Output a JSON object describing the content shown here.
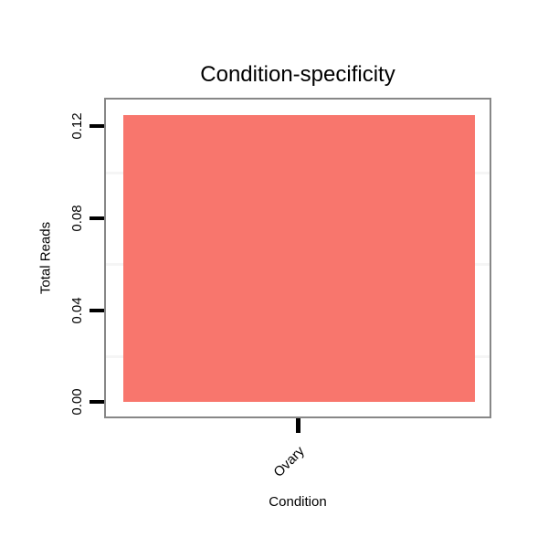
{
  "title": "Condition-specificity",
  "axes": {
    "y": {
      "label": "Total Reads",
      "tick_labels": [
        "0.00",
        "0.04",
        "0.08",
        "0.12"
      ]
    },
    "x": {
      "label": "Condition",
      "tick_labels": [
        "Ovary"
      ]
    }
  },
  "chart_data": {
    "type": "bar",
    "title": "Condition-specificity",
    "categories": [
      "Ovary"
    ],
    "values": [
      0.125
    ],
    "xlabel": "Condition",
    "ylabel": "Total Reads",
    "ylim": [
      -0.0063,
      0.1317
    ],
    "yticks": [
      0,
      0.04,
      0.08,
      0.12
    ],
    "minor_gridlines": [
      0.02,
      0.06,
      0.1
    ],
    "grid": "faint minor horizontal gridlines only",
    "legend_position": "none",
    "bar_color": "#F8766D"
  },
  "colors": {
    "background": "#FFFFFF",
    "bar": "#F8766D",
    "panel_border": "#878787",
    "gridline": "#F5F5F5",
    "text": "#000000"
  }
}
